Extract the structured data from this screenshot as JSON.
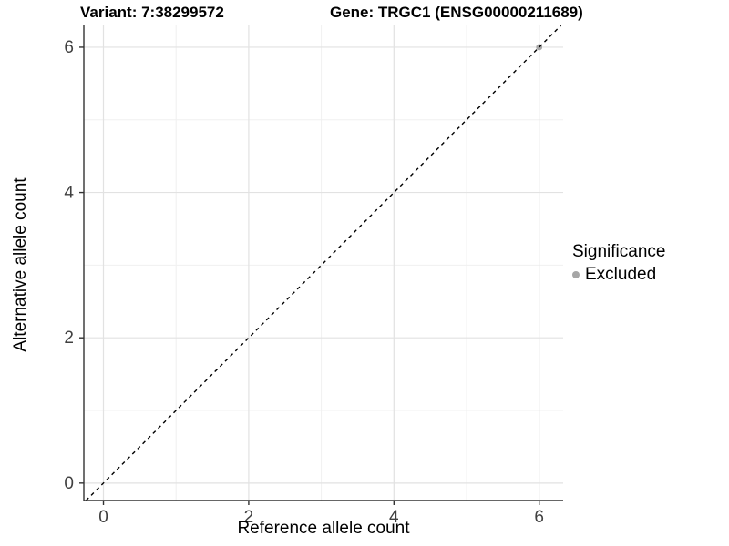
{
  "header": {
    "title_left": "Variant: 7:38299572",
    "title_right": "Gene: TRGC1 (ENSG00000211689)"
  },
  "chart_data": {
    "type": "scatter",
    "title": "Variant: 7:38299572 / Gene: TRGC1 (ENSG00000211689)",
    "xlabel": "Reference allele count",
    "ylabel": "Alternative allele count",
    "xlim": [
      -0.27,
      6.33
    ],
    "ylim": [
      -0.24,
      6.3
    ],
    "x_ticks": [
      "0",
      "2",
      "4",
      "6"
    ],
    "x_tick_values": [
      0,
      2,
      4,
      6
    ],
    "y_ticks": [
      "0",
      "2",
      "4",
      "6"
    ],
    "y_tick_values": [
      0,
      2,
      4,
      6
    ],
    "minor_tick_values": [
      1,
      3,
      5
    ],
    "grid": true,
    "series": [
      {
        "name": "Excluded",
        "color": "#a6a6a6",
        "points": [
          [
            6,
            6
          ]
        ]
      }
    ],
    "reference_line": {
      "kind": "identity",
      "from": -0.24,
      "to": 6.3,
      "style": "dashed",
      "color": "#000000"
    },
    "legend": {
      "title": "Significance",
      "position": "right",
      "items": [
        {
          "label": "Excluded",
          "color": "#a6a6a6"
        }
      ]
    }
  },
  "colors": {
    "background": "#ffffff",
    "grid_major": "#e2e2e2",
    "grid_minor": "#f0f0f0",
    "axis_line": "#333333",
    "tick_mark": "#333333",
    "tick_label": "#404040",
    "point": "#a6a6a6",
    "dashed_line": "#000000"
  }
}
